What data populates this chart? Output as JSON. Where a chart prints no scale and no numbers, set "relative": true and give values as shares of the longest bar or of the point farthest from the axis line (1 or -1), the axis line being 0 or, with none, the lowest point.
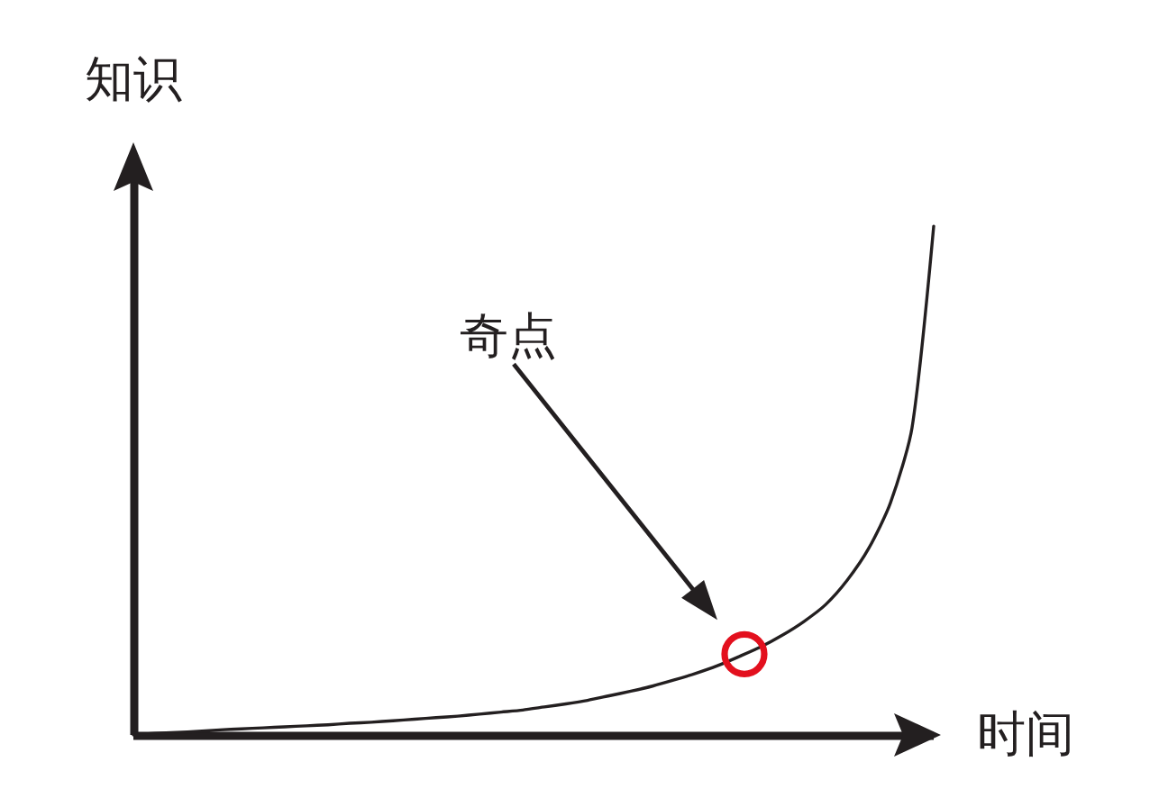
{
  "chart_data": {
    "type": "line",
    "xlabel": "时间",
    "ylabel": "知识",
    "relative": true,
    "marker": "none",
    "line_style": "solid",
    "categories": [
      null,
      null,
      null,
      null,
      null,
      null,
      null,
      null,
      null,
      null,
      null,
      null,
      null,
      null,
      null,
      null,
      null,
      null,
      null,
      null,
      null,
      null,
      null,
      null,
      null,
      null,
      null,
      null,
      null,
      null,
      null,
      null,
      null,
      null,
      null,
      null,
      null,
      null
    ],
    "series": [
      {
        "color": "#231f20",
        "values": [
          0,
          0.003,
          0.005,
          0.007,
          0.01,
          0.012,
          0.014,
          0.016,
          0.018,
          0.02,
          0.023,
          0.025,
          0.028,
          0.031,
          0.034,
          0.037,
          0.041,
          0.045,
          0.049,
          0.055,
          0.061,
          0.068,
          0.077,
          0.086,
          0.096,
          0.108,
          0.121,
          0.136,
          0.154,
          0.173,
          0.196,
          0.223,
          0.256,
          0.304,
          0.367,
          0.456,
          0.604,
          1
        ]
      }
    ],
    "annotations": [
      "奇点"
    ]
  }
}
